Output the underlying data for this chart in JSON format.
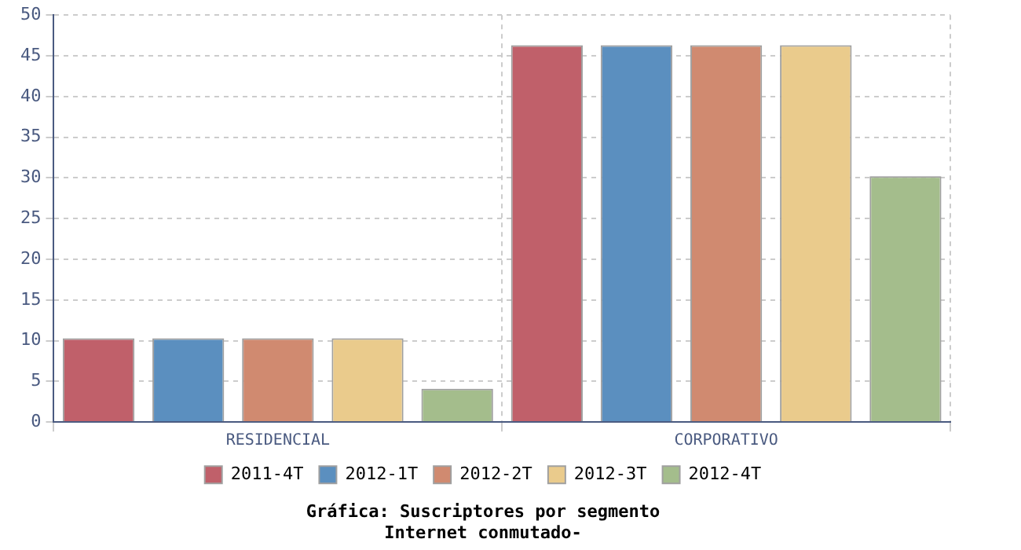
{
  "chart_data": {
    "type": "bar",
    "title": "Gráfica: Suscriptores por segmento",
    "subtitle": "Internet conmutado-",
    "categories": [
      "RESIDENCIAL",
      "CORPORATIVO"
    ],
    "series": [
      {
        "name": "2011-4T",
        "color": "#c0606a",
        "values": [
          10.3,
          46.3
        ]
      },
      {
        "name": "2012-1T",
        "color": "#5b8fbf",
        "values": [
          10.3,
          46.3
        ]
      },
      {
        "name": "2012-2T",
        "color": "#d08a70",
        "values": [
          10.3,
          46.3
        ]
      },
      {
        "name": "2012-3T",
        "color": "#eacb8c",
        "values": [
          10.3,
          46.3
        ]
      },
      {
        "name": "2012-4T",
        "color": "#a4bd8c",
        "values": [
          4.1,
          30.2
        ]
      }
    ],
    "ylim": [
      0,
      50
    ],
    "yticks": [
      0,
      5,
      10,
      15,
      20,
      25,
      30,
      35,
      40,
      45,
      50
    ],
    "grid": true,
    "legend": "bottom"
  }
}
